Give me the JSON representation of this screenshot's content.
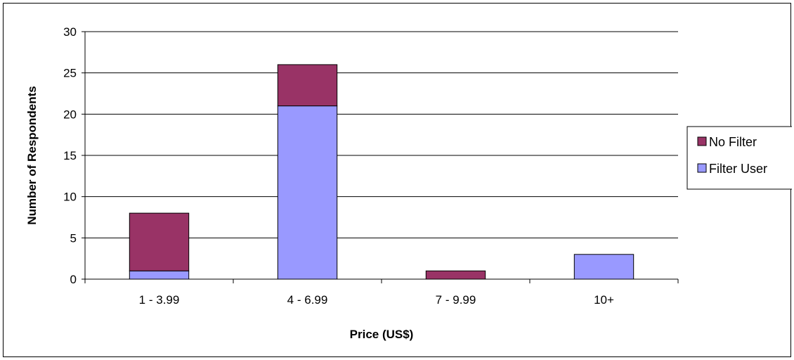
{
  "chart_data": {
    "type": "bar",
    "stacked": true,
    "categories": [
      "1 - 3.99",
      "4 - 6.99",
      "7 - 9.99",
      "10+"
    ],
    "series": [
      {
        "name": "Filter User",
        "values": [
          1,
          21,
          0,
          3
        ],
        "color": "#9999FF"
      },
      {
        "name": "No Filter",
        "values": [
          7,
          5,
          1,
          0
        ],
        "color": "#993366"
      }
    ],
    "legend_order": [
      "No Filter",
      "Filter User"
    ],
    "legend_position": "right",
    "xlabel": "Price (US$)",
    "ylabel": "Number of Respondents",
    "ylim": [
      0,
      30
    ],
    "yticks": [
      0,
      5,
      10,
      15,
      20,
      25,
      30
    ],
    "grid": true
  }
}
